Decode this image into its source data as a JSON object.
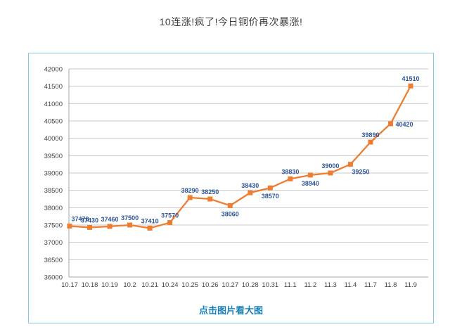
{
  "page": {
    "title": "10连涨!疯了!今日铜价再次暴涨!",
    "footer_link": "点击图片看大图"
  },
  "colors": {
    "title_text": "#3e3e3e",
    "container_border": "#7ec8ea",
    "line": "#ed7d31",
    "marker": "#ed7d31",
    "data_label": "#2e5596",
    "axis_text": "#444444",
    "gridline": "#c9c9c9",
    "axis_line": "#a6a6a6",
    "link": "#1a80b6",
    "background": "#ffffff"
  },
  "chart_data": {
    "type": "line",
    "title": "",
    "xlabel": "",
    "ylabel": "",
    "x": [
      "10.17",
      "10.18",
      "10.19",
      "10.2",
      "10.21",
      "10.24",
      "10.25",
      "10.26",
      "10.27",
      "10.28",
      "10.31",
      "11.1",
      "11.2",
      "11.3",
      "11.4",
      "11.7",
      "11.8",
      "11.9"
    ],
    "values": [
      37470,
      37430,
      37460,
      37500,
      37410,
      37570,
      38290,
      38250,
      38060,
      38430,
      38570,
      38830,
      38940,
      39000,
      39250,
      39890,
      40420,
      41510
    ],
    "label_positions": [
      "above",
      "above",
      "above",
      "above",
      "above",
      "above",
      "above",
      "above",
      "below",
      "above",
      "below",
      "above",
      "below",
      "above",
      "below-right",
      "above",
      "right",
      "above"
    ],
    "ylim": [
      36000,
      42000
    ],
    "yticks": [
      42000,
      41500,
      41000,
      40500,
      40000,
      39500,
      39000,
      38500,
      38000,
      37500,
      37000,
      36500,
      36000
    ],
    "grid": true,
    "legend": "none",
    "marker": "square"
  }
}
